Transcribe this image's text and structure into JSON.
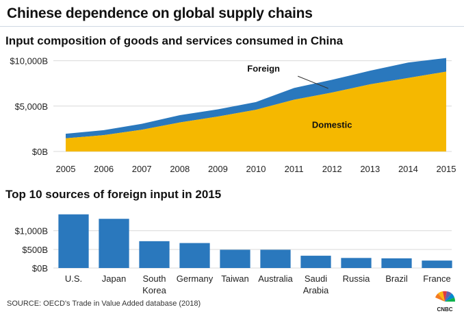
{
  "header": {
    "title": "Chinese dependence on global supply chains",
    "subtitle_area": "Input composition of goods and services consumed in China",
    "subtitle_bar": "Top 10 sources of foreign input in 2015"
  },
  "source": "SOURCE: OECD's Trade in Value Added database (2018)",
  "logo": {
    "text": "CNBC",
    "icon": "cnbc-peacock-logo"
  },
  "colors": {
    "domestic": "#F5B800",
    "foreign": "#2A78BD",
    "bar": "#2A78BD",
    "grid": "#d9d9d9"
  },
  "chart_data": [
    {
      "type": "area",
      "stacked": true,
      "title": "Input composition of goods and services consumed in China",
      "x": [
        "2005",
        "2006",
        "2007",
        "2008",
        "2009",
        "2010",
        "2011",
        "2012",
        "2013",
        "2014",
        "2015"
      ],
      "series": [
        {
          "name": "Domestic",
          "values": [
            1450,
            1800,
            2400,
            3200,
            3850,
            4600,
            5700,
            6500,
            7400,
            8100,
            8800
          ]
        },
        {
          "name": "Foreign",
          "values": [
            500,
            550,
            650,
            800,
            800,
            850,
            1300,
            1400,
            1500,
            1700,
            1500
          ]
        }
      ],
      "ylim": [
        0,
        10500
      ],
      "yticks": [
        0,
        5000,
        10000
      ],
      "ytick_labels": [
        "$0B",
        "$5,000B",
        "$10,000B"
      ],
      "annotations": [
        "Foreign",
        "Domestic"
      ],
      "grid": true
    },
    {
      "type": "bar",
      "title": "Top 10 sources of foreign input in 2015",
      "categories": [
        "U.S.",
        "Japan",
        "South Korea",
        "Germany",
        "Taiwan",
        "Australia",
        "Saudi Arabia",
        "Russia",
        "Brazil",
        "France"
      ],
      "values": [
        1440,
        1320,
        720,
        670,
        490,
        490,
        330,
        270,
        260,
        200
      ],
      "ylim": [
        0,
        1600
      ],
      "yticks": [
        0,
        500,
        1000
      ],
      "ytick_labels": [
        "$0B",
        "$500B",
        "$1,000B"
      ],
      "grid": true
    }
  ]
}
